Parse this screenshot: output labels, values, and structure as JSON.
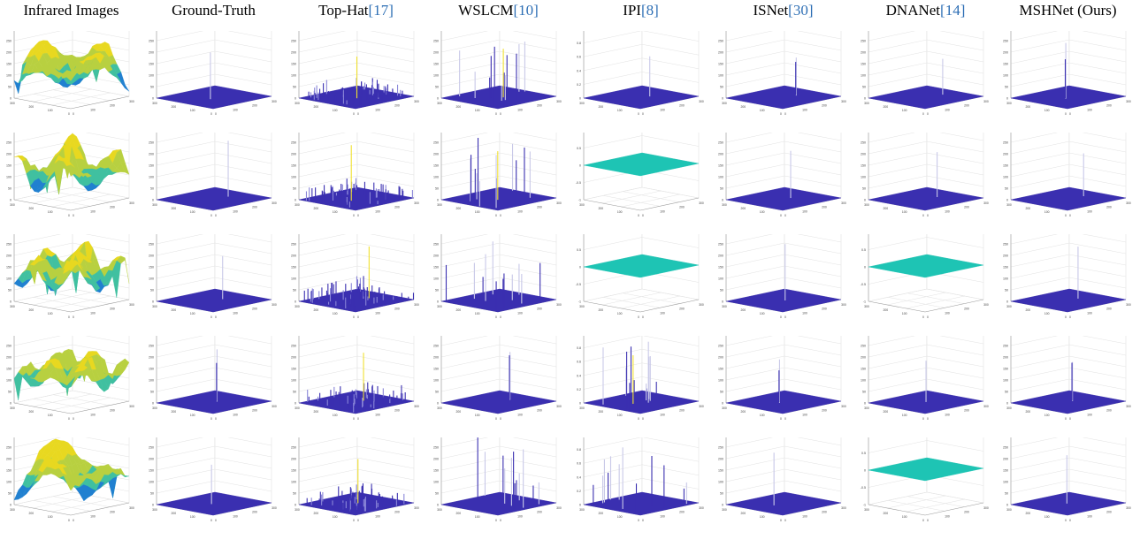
{
  "figure": {
    "columns": [
      {
        "label": "Infrared Images",
        "ref": ""
      },
      {
        "label": "Ground-Truth",
        "ref": ""
      },
      {
        "label": "Top-Hat",
        "ref": "[17]"
      },
      {
        "label": "WSLCM",
        "ref": "[10]"
      },
      {
        "label": "IPI",
        "ref": "[8]"
      },
      {
        "label": "ISNet",
        "ref": "[30]"
      },
      {
        "label": "DNANet",
        "ref": "[14]"
      },
      {
        "label": "MSHNet (Ours)",
        "ref": ""
      }
    ],
    "z_ticks_standard": [
      "300",
      "250",
      "200",
      "150",
      "100",
      "50",
      "0"
    ],
    "z_ticks_unit": [
      "1",
      "0.8",
      "0.6",
      "0.4",
      "0.2",
      "0"
    ],
    "z_ticks_signed": [
      "1",
      "0.5",
      "0",
      "-0.5",
      "-1"
    ],
    "x_ticks": [
      "0",
      "100",
      "200",
      "300"
    ],
    "y_ticks": [
      "300",
      "200",
      "100",
      "0"
    ],
    "colors": {
      "surface_base": "#3a2fb0",
      "flat_surface": "#1ec4b4",
      "peak_light": "#c8c8e8",
      "peak_yellow": "#f0e030",
      "terrain_high": "#e8d820",
      "terrain_mid": "#40c0a0",
      "terrain_low": "#2080d0",
      "grid": "#e2e2e2",
      "axis": "#999999",
      "reference_link": "#2e6fb5"
    },
    "rows": [
      [
        {
          "kind": "terrain"
        },
        {
          "kind": "sparse"
        },
        {
          "kind": "noisy"
        },
        {
          "kind": "spiky"
        },
        {
          "kind": "sparse",
          "z": "unit"
        },
        {
          "kind": "sparse"
        },
        {
          "kind": "sparse"
        },
        {
          "kind": "sparse"
        }
      ],
      [
        {
          "kind": "terrain"
        },
        {
          "kind": "sparse"
        },
        {
          "kind": "noisy"
        },
        {
          "kind": "spiky"
        },
        {
          "kind": "flat",
          "z": "signed"
        },
        {
          "kind": "sparse"
        },
        {
          "kind": "sparse"
        },
        {
          "kind": "sparse"
        }
      ],
      [
        {
          "kind": "terrain"
        },
        {
          "kind": "sparse"
        },
        {
          "kind": "noisy"
        },
        {
          "kind": "spiky"
        },
        {
          "kind": "flat",
          "z": "signed"
        },
        {
          "kind": "sparse"
        },
        {
          "kind": "flat",
          "z": "signed"
        },
        {
          "kind": "sparse"
        }
      ],
      [
        {
          "kind": "terrain"
        },
        {
          "kind": "sparse"
        },
        {
          "kind": "noisy"
        },
        {
          "kind": "sparse"
        },
        {
          "kind": "spiky",
          "z": "unit"
        },
        {
          "kind": "sparse"
        },
        {
          "kind": "sparse"
        },
        {
          "kind": "sparse"
        }
      ],
      [
        {
          "kind": "terrain"
        },
        {
          "kind": "sparse"
        },
        {
          "kind": "noisy"
        },
        {
          "kind": "spiky"
        },
        {
          "kind": "spiky",
          "z": "unit"
        },
        {
          "kind": "sparse"
        },
        {
          "kind": "flat",
          "z": "signed"
        },
        {
          "kind": "sparse"
        }
      ]
    ]
  }
}
